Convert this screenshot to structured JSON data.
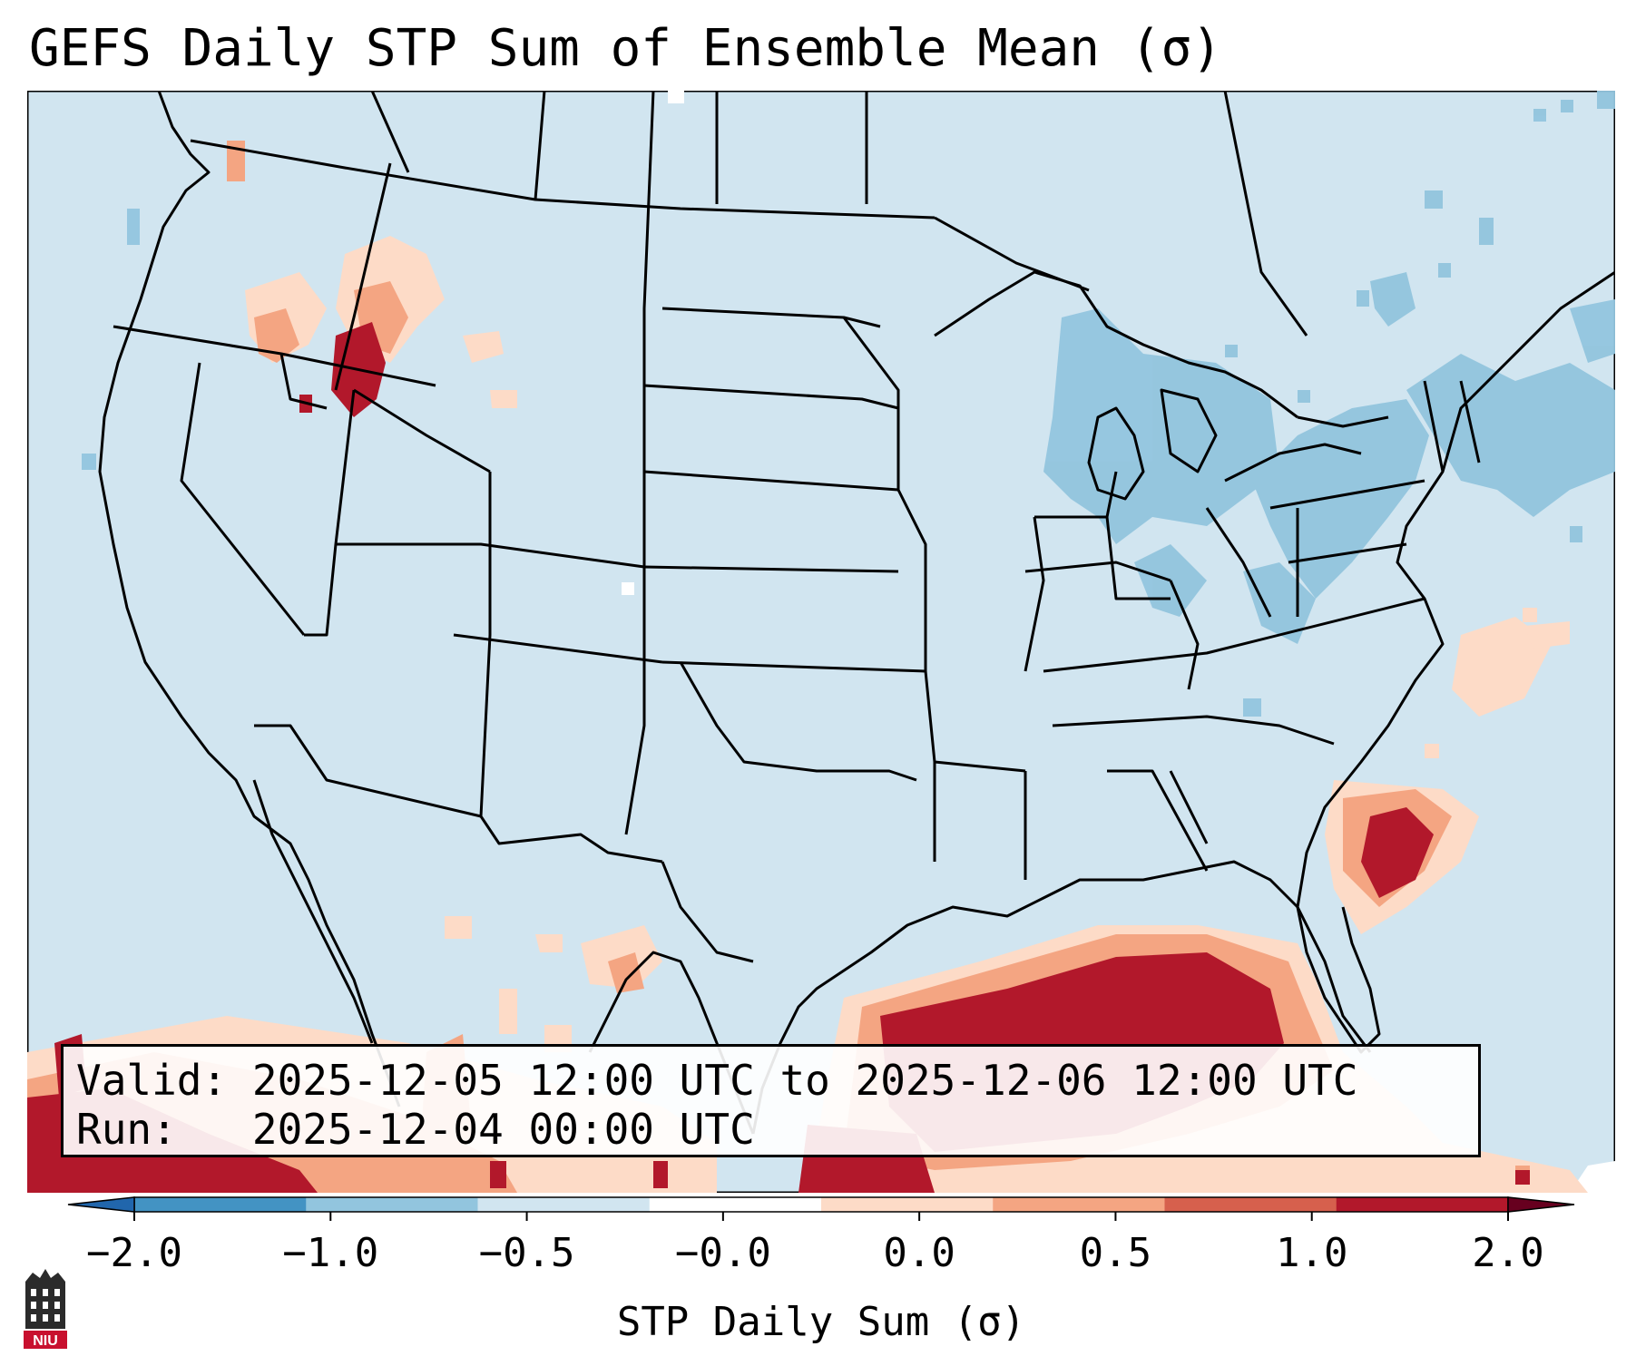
{
  "title": "GEFS Daily STP Sum of Ensemble Mean (σ)",
  "info": {
    "valid_label": "Valid:",
    "valid_value": "2025-12-05 12:00 UTC to 2025-12-06 12:00 UTC",
    "run_label": "Run:",
    "run_value": "2025-12-04 00:00 UTC"
  },
  "colorbar": {
    "label": "STP Daily Sum (σ)",
    "ticks": [
      "−2.0",
      "−1.0",
      "−0.5",
      "−0.0",
      "0.0",
      "0.5",
      "1.0",
      "2.0"
    ],
    "colors": [
      "#4393c3",
      "#92c5de",
      "#d1e5f0",
      "#ffffff",
      "#fddbc7",
      "#f4a582",
      "#d6604d",
      "#b2182b"
    ],
    "under_color": "#2166ac",
    "over_color": "#67001f"
  },
  "map": {
    "background_color": "#d1e5f0",
    "border_color": "#000000"
  },
  "logo": {
    "text": "NIU",
    "color": "#c8102e"
  }
}
